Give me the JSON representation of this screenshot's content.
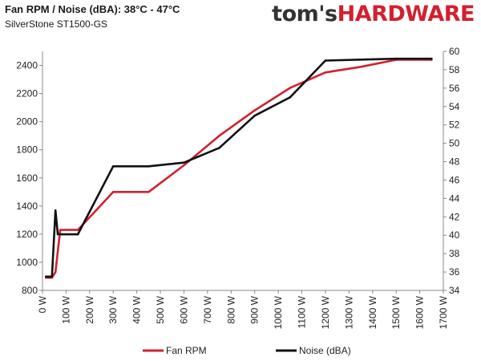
{
  "header": {
    "title": "Fan RPM / Noise (dBA): 38°C - 47°C",
    "subtitle": "SilverStone ST1500-GS"
  },
  "logo": {
    "part1": "tom's",
    "part2": "HARDWARE"
  },
  "colors": {
    "fan_rpm": "#d2202f",
    "noise": "#111111",
    "logo_accent": "#d2202f"
  },
  "chart_data": {
    "type": "line",
    "title": "Fan RPM / Noise (dBA): 38°C - 47°C",
    "subtitle": "SilverStone ST1500-GS",
    "xlabel": "",
    "ylabel": "",
    "x_tick_labels": [
      "0 W",
      "100 W",
      "200 W",
      "300 W",
      "400 W",
      "500 W",
      "600 W",
      "700 W",
      "800 W",
      "900 W",
      "1000 W",
      "1100 W",
      "1200 W",
      "1300 W",
      "1400 W",
      "1500 W",
      "1600 W",
      "1700 W"
    ],
    "xlim": [
      0,
      1700
    ],
    "ylim_left": [
      800,
      2500
    ],
    "y_ticks_left": [
      800,
      1000,
      1200,
      1400,
      1600,
      1800,
      2000,
      2200,
      2400
    ],
    "ylim_right": [
      34,
      60
    ],
    "y_ticks_right": [
      34,
      36,
      38,
      40,
      42,
      44,
      46,
      48,
      50,
      52,
      54,
      56,
      58,
      60
    ],
    "grid": false,
    "legend_position": "bottom",
    "series": [
      {
        "name": "Fan RPM",
        "axis": "left",
        "color": "#d2202f",
        "x": [
          15,
          40,
          55,
          75,
          150,
          300,
          450,
          600,
          750,
          900,
          1050,
          1200,
          1350,
          1500,
          1650
        ],
        "values": [
          890,
          890,
          930,
          1230,
          1230,
          1500,
          1500,
          1690,
          1900,
          2080,
          2240,
          2350,
          2390,
          2440,
          2440
        ]
      },
      {
        "name": "Noise (dBA)",
        "axis": "right",
        "color": "#111111",
        "x": [
          15,
          40,
          55,
          65,
          75,
          150,
          300,
          450,
          600,
          750,
          900,
          1050,
          1200,
          1350,
          1500,
          1650
        ],
        "values": [
          35.5,
          35.5,
          42.7,
          40.1,
          40.1,
          40.1,
          47.5,
          47.5,
          47.9,
          49.5,
          53.0,
          55.0,
          59.0,
          59.1,
          59.2,
          59.2
        ]
      }
    ]
  }
}
